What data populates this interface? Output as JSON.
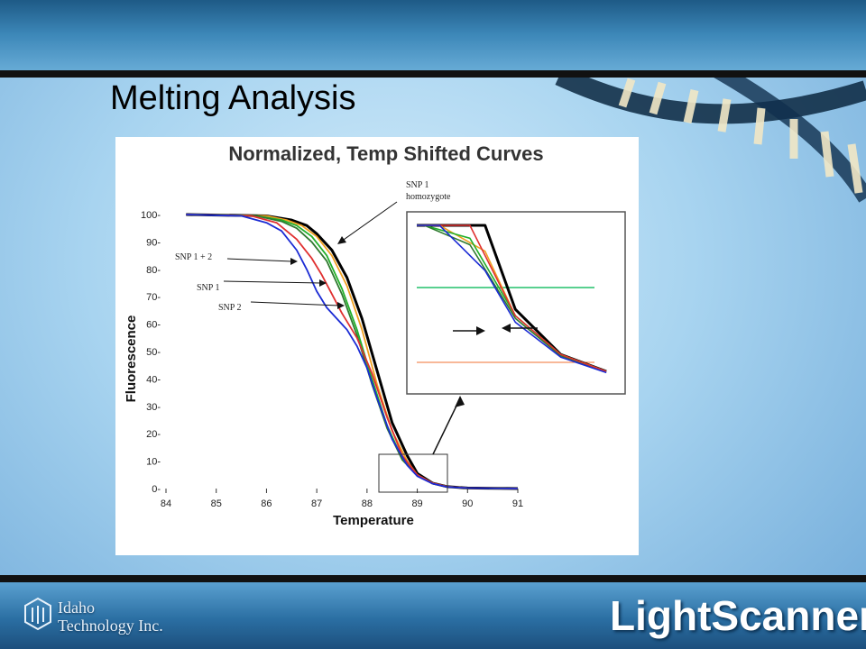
{
  "slide": {
    "title": "Melting Analysis",
    "company": {
      "line1": "Idaho",
      "line2": "Technology Inc."
    },
    "product": "LightScanner®"
  },
  "colors": {
    "background": "#a8d4f0",
    "band": "#111111",
    "blue": "#1b2bd4",
    "red": "#e03030",
    "green": "#22b02a",
    "orange": "#f0a020",
    "black": "#000000",
    "dark_green": "#2f7a2f"
  },
  "chart_data": {
    "type": "line",
    "title": "Normalized, Temp Shifted Curves",
    "xlabel": "Temperature",
    "ylabel": "Fluorescence",
    "xlim": [
      84,
      91
    ],
    "ylim": [
      0,
      100
    ],
    "xticks": [
      84,
      85,
      86,
      87,
      88,
      89,
      90,
      91
    ],
    "yticks": [
      0,
      10,
      20,
      30,
      40,
      50,
      60,
      70,
      80,
      90,
      100
    ],
    "grid": false,
    "series": [
      {
        "color": "#000000",
        "x": [
          84.4,
          86.0,
          86.5,
          86.8,
          87.0,
          87.3,
          87.6,
          87.9,
          88.2,
          88.5,
          88.8,
          89.0,
          89.3,
          89.6,
          90.0,
          91.0
        ],
        "y": [
          100,
          99.5,
          98,
          96,
          93,
          87,
          77,
          62,
          43,
          24,
          12,
          5.5,
          2,
          0.7,
          0.2,
          0
        ]
      },
      {
        "color": "#f0a020",
        "x": [
          84.4,
          86.0,
          86.4,
          86.7,
          87.0,
          87.3,
          87.6,
          87.9,
          88.2,
          88.5,
          88.8,
          89.0,
          89.3,
          89.6,
          90.0,
          91.0
        ],
        "y": [
          100,
          99.5,
          98,
          96,
          92,
          85,
          74,
          58,
          38,
          21,
          10,
          5,
          2,
          0.7,
          0.2,
          0
        ]
      },
      {
        "color": "#22b02a",
        "x": [
          84.4,
          85.8,
          86.3,
          86.6,
          86.9,
          87.2,
          87.5,
          87.8,
          88.1,
          88.4,
          88.7,
          89.0,
          89.3,
          89.6,
          90.0,
          91.0
        ],
        "y": [
          100,
          99.5,
          98,
          96,
          92,
          85,
          73,
          58,
          40,
          23,
          11,
          5,
          2,
          0.7,
          0.2,
          0
        ]
      },
      {
        "color": "#2f7a2f",
        "x": [
          84.4,
          85.8,
          86.3,
          86.6,
          86.9,
          87.2,
          87.5,
          87.8,
          88.1,
          88.4,
          88.7,
          89.0,
          89.3,
          89.6,
          90.0,
          91.0
        ],
        "y": [
          100,
          99.5,
          97.5,
          95,
          90,
          83,
          71,
          56,
          38,
          22,
          10.5,
          4.8,
          1.9,
          0.7,
          0.2,
          0
        ]
      },
      {
        "color": "#e03030",
        "x": [
          84.4,
          85.7,
          86.2,
          86.6,
          86.9,
          87.1,
          87.3,
          87.5,
          87.8,
          88.1,
          88.4,
          88.7,
          89.0,
          89.3,
          89.6,
          90.0,
          91.0
        ],
        "y": [
          100,
          99.5,
          97,
          91,
          84,
          78,
          71,
          64,
          55,
          42,
          26,
          12,
          5,
          2,
          0.7,
          0.2,
          0
        ]
      },
      {
        "color": "#1b2bd4",
        "x": [
          84.4,
          85.5,
          86.0,
          86.3,
          86.6,
          86.8,
          87.0,
          87.2,
          87.4,
          87.6,
          87.8,
          88.0,
          88.2,
          88.5,
          88.8,
          89.0,
          89.3,
          89.6,
          90.0,
          91.0
        ],
        "y": [
          100,
          99.5,
          97,
          94,
          87,
          80,
          72,
          66,
          62,
          58,
          52,
          44,
          33,
          18,
          8.5,
          4.5,
          1.8,
          0.6,
          0.2,
          0
        ]
      }
    ],
    "annotations": [
      {
        "text": "SNP 1\nhomozygote"
      },
      {
        "text": "SNP 1 + 2"
      },
      {
        "text": "SNP 1"
      },
      {
        "text": "SNP 2"
      }
    ],
    "inset": {
      "note": "magnified view of crossing region near 88.5–89.5 °C"
    }
  }
}
